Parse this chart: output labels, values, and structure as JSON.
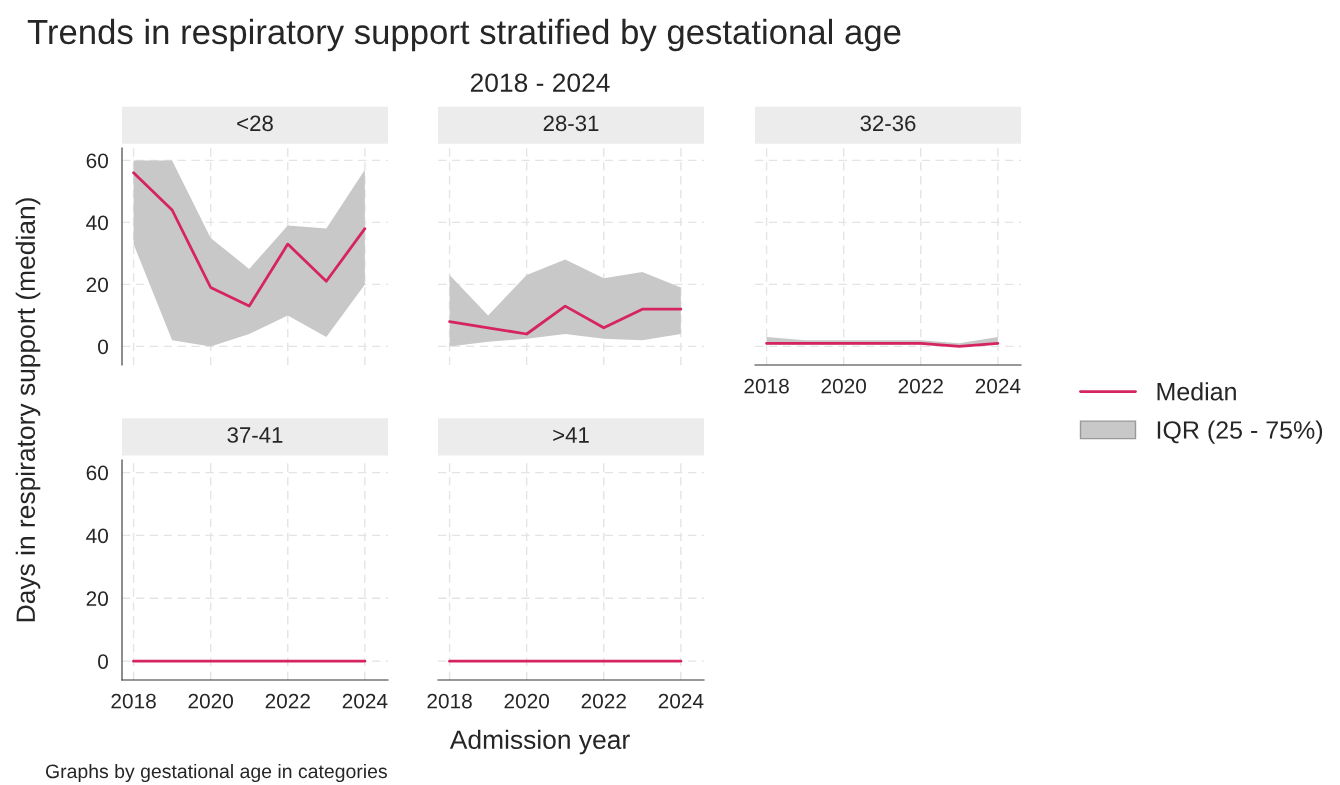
{
  "chart_data": [
    {
      "type": "line",
      "title": "<28",
      "ylabel": "Days in respiratory support (median)",
      "annotations": [
        "Trends in respiratory support stratified by gestational age",
        "2018 - 2024",
        "Graphs by gestational age in categories"
      ],
      "x": [
        2018,
        2019,
        2020,
        2021,
        2022,
        2023,
        2024
      ],
      "xlim": [
        2017.7,
        2024.6
      ],
      "ylim": [
        -6,
        64
      ],
      "yticks": [
        0,
        20,
        40,
        60
      ],
      "tick_labels": "y",
      "grid": true,
      "series": [
        {
          "color": "#d6245f",
          "values": [
            56,
            44,
            19,
            13,
            33,
            21,
            38
          ],
          "lower": [
            33,
            2,
            0,
            4,
            10,
            3,
            20
          ],
          "upper": [
            60,
            60,
            35,
            25,
            39,
            38,
            57
          ]
        }
      ]
    },
    {
      "type": "line",
      "title": "28-31",
      "x": [
        2018,
        2019,
        2020,
        2021,
        2022,
        2023,
        2024
      ],
      "xlim": [
        2017.7,
        2024.6
      ],
      "ylim": [
        -6,
        64
      ],
      "yticks": [
        0,
        20,
        40,
        60
      ],
      "tick_labels": false,
      "grid": true,
      "series": [
        {
          "color": "#d6245f",
          "values": [
            8,
            6,
            4,
            13,
            6,
            12,
            12
          ],
          "lower": [
            0,
            1.5,
            2.5,
            4,
            2.5,
            2,
            4
          ],
          "upper": [
            23,
            10,
            23,
            28,
            22,
            24,
            19
          ]
        }
      ]
    },
    {
      "type": "line",
      "title": "32-36",
      "annotations": [
        "IQR (25 - 75%)"
      ],
      "x": [
        2018,
        2019,
        2020,
        2021,
        2022,
        2023,
        2024
      ],
      "xlim": [
        2017.7,
        2024.6
      ],
      "xticks": [
        2018,
        2020,
        2022,
        2024
      ],
      "ylim": [
        -6,
        64
      ],
      "yticks": [
        0,
        20,
        40,
        60
      ],
      "tick_labels": "x",
      "grid": true,
      "legend": "right",
      "series": [
        {
          "name": "Median",
          "color": "#d6245f",
          "values": [
            1,
            1,
            1,
            1,
            1,
            0,
            1
          ],
          "lower": [
            0.5,
            0.5,
            0.5,
            0.5,
            0.5,
            0,
            0.5
          ],
          "upper": [
            3,
            2,
            2,
            2,
            2,
            1,
            3
          ]
        }
      ]
    },
    {
      "type": "line",
      "title": "37-41",
      "x": [
        2018,
        2019,
        2020,
        2021,
        2022,
        2023,
        2024
      ],
      "xlim": [
        2017.7,
        2024.6
      ],
      "xticks": [
        2018,
        2020,
        2022,
        2024
      ],
      "ylim": [
        -6,
        64
      ],
      "yticks": [
        0,
        20,
        40,
        60
      ],
      "grid": true,
      "series": [
        {
          "color": "#d6245f",
          "values": [
            0,
            0,
            0,
            0,
            0,
            0,
            0
          ]
        }
      ]
    },
    {
      "type": "line",
      "title": ">41",
      "xlabel": "Admission year",
      "x": [
        2018,
        2019,
        2020,
        2021,
        2022,
        2023,
        2024
      ],
      "xlim": [
        2017.7,
        2024.6
      ],
      "xticks": [
        2018,
        2020,
        2022,
        2024
      ],
      "ylim": [
        -6,
        64
      ],
      "yticks": [
        0,
        20,
        40,
        60
      ],
      "tick_labels": "x",
      "grid": true,
      "series": [
        {
          "color": "#d6245f",
          "values": [
            0,
            0,
            0,
            0,
            0,
            0,
            0
          ]
        }
      ]
    }
  ]
}
